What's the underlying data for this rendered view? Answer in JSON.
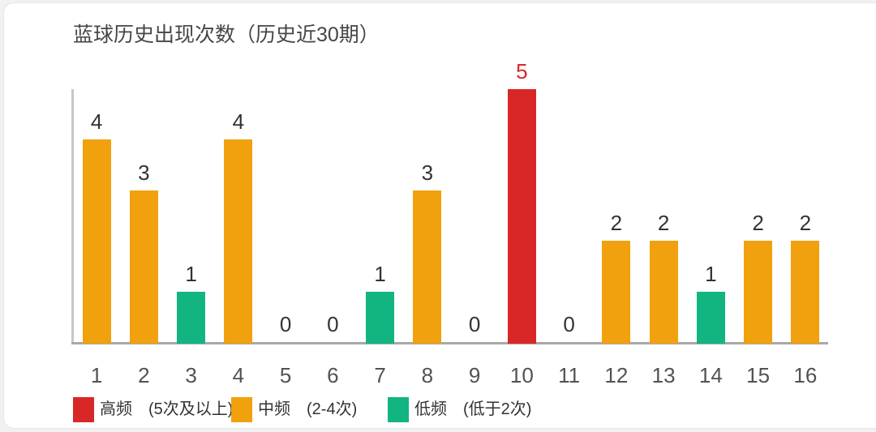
{
  "page": {
    "background_color": "#f0f1f2",
    "card_background_color": "#ffffff"
  },
  "chart_data": {
    "type": "bar",
    "title": "蓝球历史出现次数（历史近30期）",
    "categories": [
      "1",
      "2",
      "3",
      "4",
      "5",
      "6",
      "7",
      "8",
      "9",
      "10",
      "11",
      "12",
      "13",
      "14",
      "15",
      "16"
    ],
    "values": [
      4,
      3,
      1,
      4,
      0,
      0,
      1,
      3,
      0,
      5,
      0,
      2,
      2,
      1,
      2,
      2
    ],
    "xlabel": "",
    "ylabel": "",
    "ylim": [
      0,
      5
    ],
    "grid": false,
    "legend_position": "bottom",
    "value_labels_shown": true,
    "frequency_classes": {
      "high": {
        "min_value": 5,
        "color": "#d92727"
      },
      "mid": {
        "min_value": 2,
        "color": "#f1a10e"
      },
      "low": {
        "min_value": 0,
        "color": "#12b581"
      }
    },
    "value_label_color_default": "#333333",
    "value_label_color_high": "#d92727",
    "legend": [
      {
        "label": "高频　(5次及以上)",
        "class": "high",
        "color": "#d92727"
      },
      {
        "label": "中频　(2-4次)",
        "class": "mid",
        "color": "#f1a10e"
      },
      {
        "label": "低频　(低于2次)",
        "class": "low",
        "color": "#12b581"
      }
    ]
  }
}
